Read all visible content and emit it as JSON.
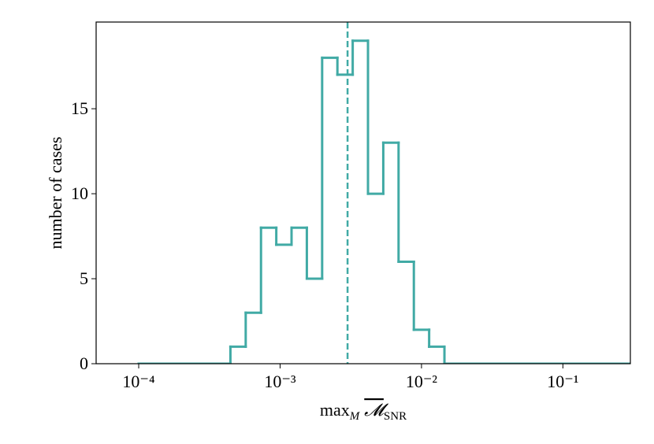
{
  "chart_data": {
    "type": "histogram",
    "ylabel": "number of cases",
    "xlabel_parts": [
      "max",
      "M",
      "𝓜",
      "SNR"
    ],
    "color": "#41aaa5",
    "log_x": true,
    "bins": [
      0.0001,
      0.0001283,
      0.0001645,
      0.000211,
      0.0002707,
      0.0003472,
      0.0004453,
      0.0005712,
      0.0007327,
      0.0009398,
      0.001205,
      0.001546,
      0.001983,
      0.002543,
      0.003262,
      0.004184,
      0.005367,
      0.006884,
      0.00883,
      0.011325,
      0.01453,
      0.01863,
      0.0239,
      0.03065,
      0.03932,
      0.05043,
      0.06469,
      0.08298,
      0.1064,
      0.1365,
      0.1751,
      0.2246,
      0.2881,
      0.3696,
      0.4741,
      0.6081,
      0.78,
      1
    ],
    "values": [
      0,
      0,
      0,
      0,
      0,
      0,
      1,
      3,
      8,
      7,
      8,
      5,
      18,
      17,
      19,
      10,
      13,
      6,
      2,
      1,
      0,
      0,
      0,
      0,
      0,
      0,
      0,
      0,
      0,
      0,
      0,
      0,
      0,
      0,
      0,
      0,
      0
    ],
    "vline": 0.003,
    "xlim": [
      5e-05,
      0.3
    ],
    "ylim": [
      0,
      20.1
    ],
    "xticks": [
      {
        "value": 0.0001,
        "label": "10⁻⁴"
      },
      {
        "value": 0.001,
        "label": "10⁻³"
      },
      {
        "value": 0.01,
        "label": "10⁻²"
      },
      {
        "value": 0.1,
        "label": "10⁻¹"
      }
    ],
    "yticks": [
      0,
      5,
      10,
      15
    ]
  }
}
